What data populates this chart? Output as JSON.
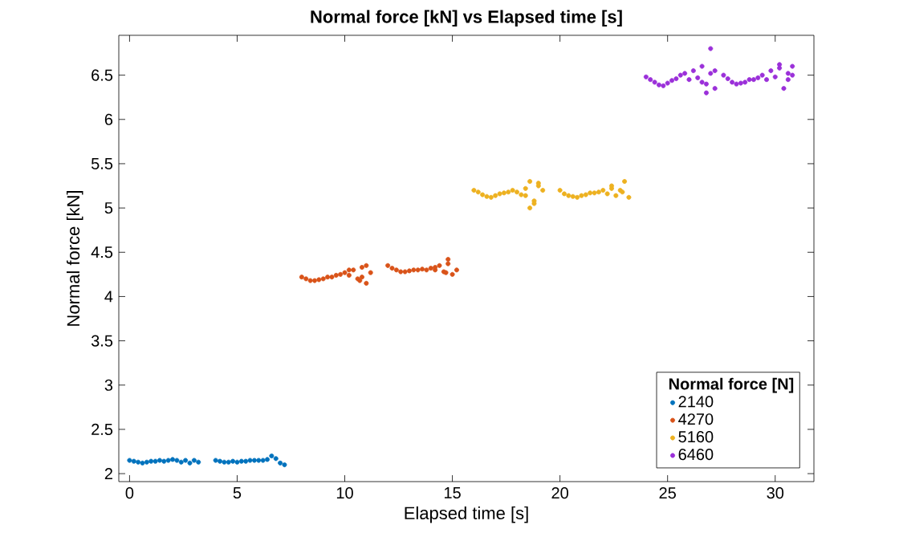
{
  "chart_data": {
    "type": "scatter",
    "title": "Normal force [kN] vs Elapsed time [s]",
    "xlabel": "Elapsed time [s]",
    "ylabel": "Normal force [kN]",
    "legend_title": "Normal force [N]",
    "legend": "bottom right",
    "grid": false,
    "xlim": [
      -0.5,
      31.8
    ],
    "ylim": [
      1.91,
      6.95
    ],
    "xticks": [
      0,
      5,
      10,
      15,
      20,
      25,
      30
    ],
    "yticks": [
      2,
      2.5,
      3,
      3.5,
      4,
      4.5,
      5,
      5.5,
      6,
      6.5
    ],
    "series": [
      {
        "name": "2140",
        "color": "#0072bd",
        "x": [
          0,
          0.2,
          0.4,
          0.6,
          0.8,
          1,
          1.2,
          1.4,
          1.6,
          1.8,
          2,
          2.2,
          2.4,
          2.6,
          2.8,
          3,
          3.2,
          4,
          4.2,
          4.4,
          4.6,
          4.8,
          5,
          5.2,
          5.4,
          5.6,
          5.8,
          6,
          6.2,
          6.4,
          6.6,
          6.8,
          7,
          7.2
        ],
        "values": [
          2.15,
          2.14,
          2.13,
          2.12,
          2.13,
          2.14,
          2.14,
          2.15,
          2.14,
          2.15,
          2.16,
          2.15,
          2.13,
          2.15,
          2.12,
          2.15,
          2.13,
          2.15,
          2.14,
          2.13,
          2.13,
          2.14,
          2.13,
          2.14,
          2.14,
          2.15,
          2.15,
          2.15,
          2.15,
          2.16,
          2.2,
          2.17,
          2.12,
          2.1
        ]
      },
      {
        "name": "4270",
        "color": "#d95319",
        "x": [
          8,
          8.2,
          8.4,
          8.6,
          8.8,
          9,
          9.2,
          9.4,
          9.6,
          9.8,
          10,
          10.2,
          10.4,
          10.6,
          10.8,
          11,
          11.2,
          10.2,
          10.7,
          11,
          10.8,
          12,
          12.2,
          12.4,
          12.6,
          12.8,
          13,
          13.2,
          13.4,
          13.6,
          13.8,
          14,
          14.2,
          14.4,
          14.6,
          14.8,
          15,
          15.2,
          14.2,
          14.7,
          14.8
        ],
        "values": [
          4.22,
          4.2,
          4.18,
          4.18,
          4.19,
          4.2,
          4.22,
          4.22,
          4.24,
          4.25,
          4.27,
          4.24,
          4.3,
          4.2,
          4.33,
          4.15,
          4.27,
          4.3,
          4.18,
          4.35,
          4.22,
          4.35,
          4.32,
          4.3,
          4.28,
          4.28,
          4.29,
          4.3,
          4.3,
          4.31,
          4.3,
          4.32,
          4.3,
          4.35,
          4.28,
          4.42,
          4.25,
          4.3,
          4.33,
          4.27,
          4.37
        ]
      },
      {
        "name": "5160",
        "color": "#edb120",
        "x": [
          16,
          16.2,
          16.4,
          16.6,
          16.8,
          17,
          17.2,
          17.4,
          17.6,
          17.8,
          18,
          18.2,
          18.4,
          18.6,
          18.8,
          19,
          19.2,
          18.6,
          18.8,
          19,
          18.4,
          20,
          20.2,
          20.4,
          20.6,
          20.8,
          21,
          21.2,
          21.4,
          21.6,
          21.8,
          22,
          22.2,
          22.4,
          22.6,
          22.8,
          23,
          23.2,
          22.4,
          22.9
        ],
        "values": [
          5.2,
          5.18,
          5.15,
          5.13,
          5.12,
          5.14,
          5.16,
          5.17,
          5.18,
          5.2,
          5.18,
          5.15,
          5.22,
          5.3,
          5.08,
          5.28,
          5.2,
          5.0,
          5.05,
          5.25,
          5.14,
          5.2,
          5.16,
          5.14,
          5.13,
          5.12,
          5.14,
          5.15,
          5.17,
          5.17,
          5.18,
          5.2,
          5.16,
          5.25,
          5.14,
          5.2,
          5.3,
          5.12,
          5.22,
          5.18
        ]
      },
      {
        "name": "6460",
        "color": "#9b30d9",
        "x": [
          24,
          24.2,
          24.4,
          24.6,
          24.8,
          25,
          25.2,
          25.4,
          25.6,
          25.8,
          26,
          26.2,
          26.4,
          26.6,
          26.8,
          27,
          27.2,
          26.8,
          27,
          26.6,
          27.2,
          27.6,
          27.8,
          28,
          28.2,
          28.4,
          28.6,
          28.8,
          29,
          29.2,
          29.4,
          29.6,
          29.8,
          30,
          30.2,
          30.4,
          30.6,
          30.8,
          30.2,
          30.6,
          30.8
        ],
        "values": [
          6.48,
          6.45,
          6.42,
          6.39,
          6.38,
          6.41,
          6.44,
          6.46,
          6.5,
          6.52,
          6.45,
          6.55,
          6.47,
          6.6,
          6.4,
          6.52,
          6.35,
          6.3,
          6.8,
          6.42,
          6.55,
          6.5,
          6.46,
          6.42,
          6.4,
          6.41,
          6.42,
          6.45,
          6.45,
          6.47,
          6.5,
          6.45,
          6.55,
          6.48,
          6.62,
          6.35,
          6.52,
          6.5,
          6.58,
          6.45,
          6.6
        ]
      }
    ]
  }
}
